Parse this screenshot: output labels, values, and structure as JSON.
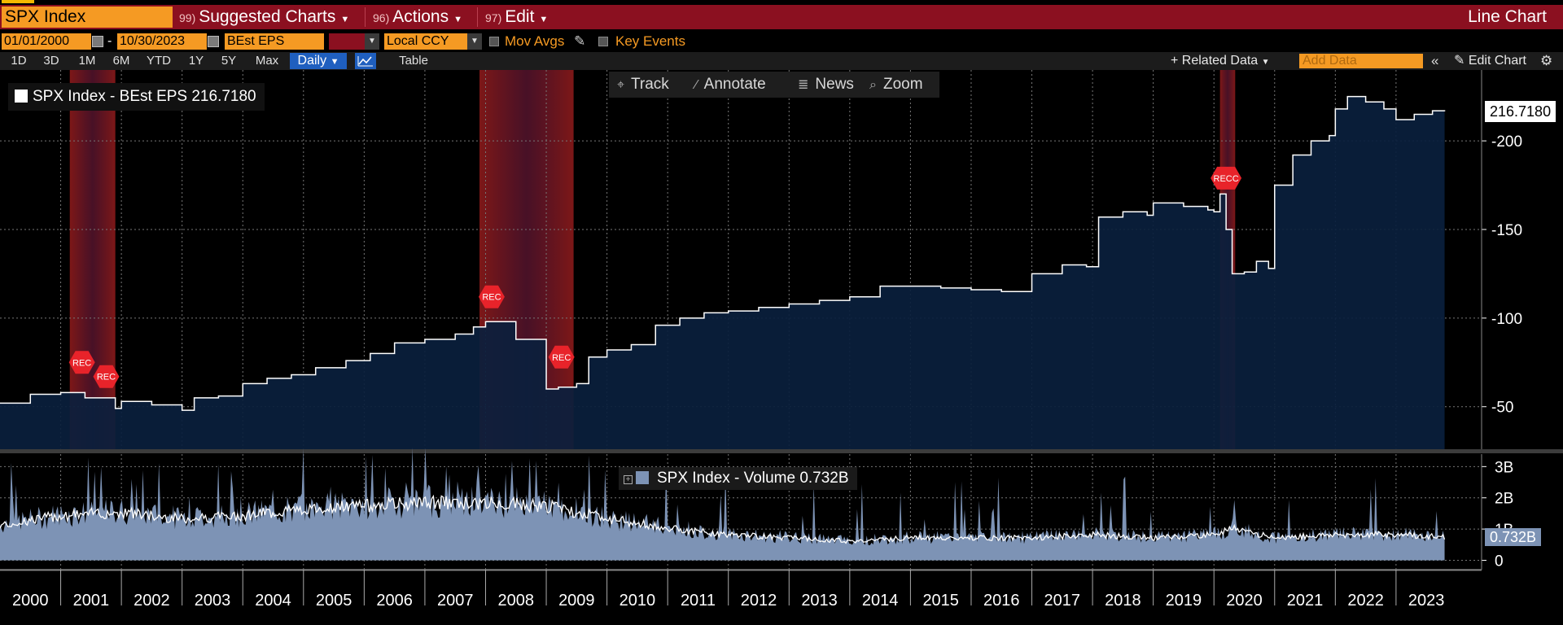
{
  "titlebar": {
    "ticker": "SPX Index",
    "suggested": {
      "num": "99)",
      "label": "Suggested Charts"
    },
    "actions": {
      "num": "96)",
      "label": "Actions"
    },
    "edit": {
      "num": "97)",
      "label": "Edit"
    },
    "chart_type": "Line Chart"
  },
  "controls": {
    "start_date": "01/01/2000",
    "end_date": "10/30/2023",
    "field": "BEst EPS",
    "currency": "Local CCY",
    "mov_avgs": "Mov Avgs",
    "key_events": "Key Events",
    "periods": [
      "1D",
      "3D",
      "1M",
      "6M",
      "YTD",
      "1Y",
      "5Y",
      "Max"
    ],
    "frequency": "Daily",
    "table": "Table",
    "related_data": "Related Data",
    "add_data_placeholder": "Add Data",
    "edit_chart": "Edit Chart"
  },
  "toolbar": {
    "track": "Track",
    "annotate": "Annotate",
    "news": "News",
    "zoom": "Zoom"
  },
  "legend": {
    "eps": "SPX Index - BEst EPS 216.7180",
    "volume": "SPX Index - Volume 0.732B"
  },
  "last_values": {
    "eps": "216.7180",
    "volume": "0.732B"
  },
  "colors": {
    "accent": "#f59a23",
    "titlebar": "#8b1020",
    "area": "#0a1f3d",
    "volume": "#7d93b5",
    "recession": "#8b1a1a"
  },
  "icons": {
    "track": "crosshair-icon",
    "annotate": "pencil-icon",
    "news": "news-icon",
    "zoom": "magnifier-icon",
    "gear": "gear-icon"
  },
  "chart_data": [
    {
      "type": "area",
      "series": [
        {
          "name": "SPX Index - BEst EPS",
          "x": [
            2000.0,
            2000.5,
            2001.0,
            2001.4,
            2001.9,
            2002.0,
            2002.5,
            2003.0,
            2003.2,
            2003.6,
            2004.0,
            2004.4,
            2004.8,
            2005.2,
            2005.7,
            2006.1,
            2006.5,
            2007.0,
            2007.5,
            2007.8,
            2008.0,
            2008.5,
            2009.0,
            2009.2,
            2009.5,
            2009.7,
            2010.0,
            2010.4,
            2010.8,
            2011.2,
            2011.6,
            2012.0,
            2012.5,
            2013.0,
            2013.5,
            2014.0,
            2014.5,
            2015.0,
            2015.5,
            2016.0,
            2016.5,
            2017.0,
            2017.5,
            2017.9,
            2018.1,
            2018.5,
            2018.9,
            2019.0,
            2019.5,
            2019.9,
            2020.0,
            2020.1,
            2020.2,
            2020.3,
            2020.5,
            2020.7,
            2020.9,
            2021.0,
            2021.3,
            2021.6,
            2021.9,
            2022.0,
            2022.2,
            2022.5,
            2022.8,
            2023.0,
            2023.3,
            2023.6,
            2023.8
          ],
          "values": [
            52,
            57,
            58,
            55,
            49,
            53,
            51,
            48,
            55,
            56,
            63,
            66,
            68,
            72,
            76,
            80,
            86,
            88,
            91,
            95,
            98,
            88,
            60,
            61,
            63,
            78,
            82,
            85,
            96,
            100,
            103,
            104,
            106,
            108,
            110,
            112,
            118,
            118,
            117,
            116,
            115,
            125,
            130,
            129,
            157,
            160,
            158,
            165,
            163,
            161,
            160,
            170,
            150,
            125,
            126,
            132,
            128,
            175,
            192,
            200,
            203,
            218,
            225,
            222,
            218,
            212,
            215,
            217,
            216.718
          ]
        }
      ],
      "title": "SPX Index - BEst EPS 216.7180",
      "xlim": [
        2000,
        2023.9
      ],
      "ylim": [
        26,
        240
      ],
      "yticks": [
        50,
        100,
        150,
        200
      ],
      "xticks": [
        "2000",
        "2001",
        "2002",
        "2003",
        "2004",
        "2005",
        "2006",
        "2007",
        "2008",
        "2009",
        "2010",
        "2011",
        "2012",
        "2013",
        "2014",
        "2015",
        "2016",
        "2017",
        "2018",
        "2019",
        "2020",
        "2021",
        "2022",
        "2023"
      ],
      "shaded": [
        [
          2001.15,
          2001.9
        ],
        [
          2007.9,
          2009.45
        ],
        [
          2020.1,
          2020.35
        ]
      ],
      "shaded_labels": [
        {
          "label": "REC",
          "x": 2001.35,
          "y": 75
        },
        {
          "label": "REC",
          "x": 2001.75,
          "y": 67
        },
        {
          "label": "REC",
          "x": 2008.1,
          "y": 112
        },
        {
          "label": "REC",
          "x": 2009.25,
          "y": 78
        },
        {
          "label": "RECC",
          "x": 2020.2,
          "y": 179
        }
      ],
      "grid": true
    },
    {
      "type": "area",
      "series": [
        {
          "name": "SPX Index - Volume",
          "x": [
            2000.0,
            2001.0,
            2002.0,
            2003.0,
            2004.0,
            2005.0,
            2006.0,
            2007.0,
            2008.0,
            2009.0,
            2010.0,
            2011.0,
            2012.0,
            2013.0,
            2014.0,
            2015.0,
            2016.0,
            2017.0,
            2018.0,
            2019.0,
            2020.0,
            2020.3,
            2021.0,
            2022.0,
            2023.0,
            2023.8
          ],
          "values": [
            1.1,
            1.4,
            1.5,
            1.3,
            1.4,
            1.6,
            1.7,
            1.8,
            1.8,
            1.7,
            1.3,
            1.0,
            0.8,
            0.7,
            0.6,
            0.7,
            0.7,
            0.7,
            0.8,
            0.7,
            0.8,
            1.0,
            0.7,
            0.8,
            0.8,
            0.732
          ]
        }
      ],
      "title": "SPX Index - Volume 0.732B",
      "ylim": [
        -0.3,
        3.4
      ],
      "yticks": [
        "0",
        "1B",
        "2B",
        "3B"
      ],
      "grid": true
    }
  ]
}
